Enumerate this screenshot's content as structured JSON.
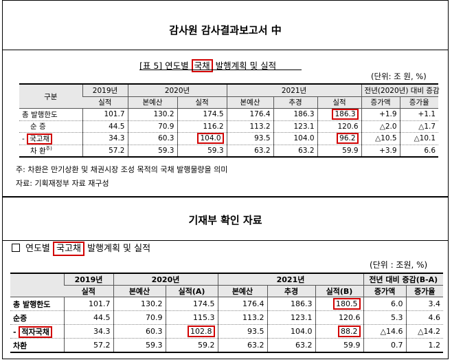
{
  "top": {
    "title": "감사원 감사결과보고서 中",
    "caption_pre": "[표 5] 연도별",
    "caption_box": "국채",
    "caption_post": "발행계획 및 실적",
    "unit": "(단위: 조 원, %)",
    "headers": {
      "gubun": "구분",
      "y2019": "2019년",
      "y2020": "2020년",
      "y2021": "2021년",
      "yoy": "전년(2020년) 대비 증감",
      "actual": "실적",
      "budget": "본예산",
      "supp": "추경",
      "diff": "증가액",
      "rate": "증가율"
    },
    "rows": [
      {
        "label": "총 발행한도",
        "v": [
          "101.7",
          "130.2",
          "174.5",
          "176.4",
          "186.3",
          "186.3",
          "+1.9",
          "+1.1"
        ]
      },
      {
        "label": "순 증",
        "v": [
          "44.5",
          "70.9",
          "116.2",
          "113.2",
          "123.1",
          "120.6",
          "△2.0",
          "△1.7"
        ]
      },
      {
        "label_pre": "-",
        "label_box": "국고채",
        "v": [
          "34.3",
          "60.3",
          "104.0",
          "93.5",
          "104.0",
          "96.2",
          "△10.5",
          "△10.1"
        ]
      },
      {
        "label": "차 환",
        "label_sup": "주)",
        "v": [
          "57.2",
          "59.3",
          "59.3",
          "63.2",
          "63.2",
          "59.9",
          "+3.9",
          "6.6"
        ]
      }
    ],
    "note1": "주: 차환은 만기상환 및 채권시장 조성 목적의 국채 발행물량을 의미",
    "note2": "자료: 기획재정부 자료 재구성"
  },
  "bottom": {
    "title": "기재부 확인 자료",
    "caption_pre": "연도별",
    "caption_box": "국고채",
    "caption_post": "발행계획 및 실적",
    "unit": "(단위 : 조원, %)",
    "headers": {
      "y2019": "2019년",
      "y2020": "2020년",
      "y2021": "2021년",
      "yoy": "전년 대비 증감(B-A)",
      "actual": "실적",
      "budget": "본예산",
      "actual_a": "실적(A)",
      "supp": "추경",
      "actual_b": "실적(B)",
      "diff": "증가액",
      "rate": "증가율"
    },
    "rows": [
      {
        "label": "총 발행한도",
        "v": [
          "101.7",
          "130.2",
          "174.5",
          "176.4",
          "186.3",
          "180.5",
          "6.0",
          "3.4"
        ]
      },
      {
        "label": "순증",
        "v": [
          "44.5",
          "70.9",
          "115.3",
          "113.2",
          "123.1",
          "120.6",
          "5.3",
          "4.6"
        ]
      },
      {
        "label_pre": "-",
        "label_box": "적자국채",
        "v": [
          "34.3",
          "60.3",
          "102.8",
          "93.5",
          "104.0",
          "88.2",
          "△14.6",
          "△14.2"
        ]
      },
      {
        "label": "차환",
        "v": [
          "57.2",
          "59.3",
          "59.2",
          "63.2",
          "63.2",
          "59.9",
          "0.7",
          "1.2"
        ]
      }
    ]
  }
}
